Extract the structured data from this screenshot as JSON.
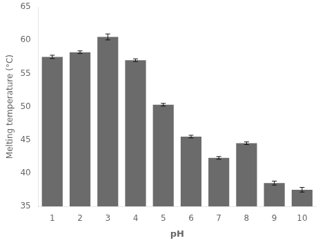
{
  "chart_data": {
    "type": "bar",
    "categories": [
      1,
      2,
      3,
      4,
      5,
      6,
      7,
      8,
      9,
      10
    ],
    "values": [
      57.5,
      58.2,
      60.5,
      57.0,
      50.3,
      45.5,
      42.3,
      44.5,
      38.5,
      37.5
    ],
    "errors": [
      0.25,
      0.2,
      0.45,
      0.2,
      0.2,
      0.2,
      0.2,
      0.2,
      0.3,
      0.35
    ],
    "color": "#6b6b6b",
    "xlabel": "pH",
    "ylabel": "Melting temperature (°C)",
    "ylim": [
      35,
      65
    ],
    "yticks": [
      35,
      40,
      45,
      50,
      55,
      60,
      65
    ],
    "grid": false
  }
}
